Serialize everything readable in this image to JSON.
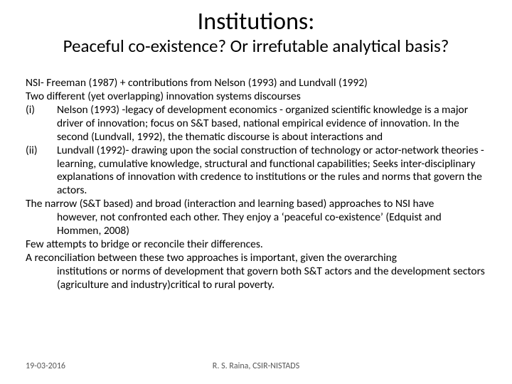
{
  "title": "Institutions:",
  "subtitle": "Peaceful co-existence? Or irrefutable analytical basis?",
  "body": {
    "line1": " NSI-  Freeman (1987) +  contributions from Nelson (1993) and Lundvall (1992)",
    "line2": "Two different (yet overlapping) innovation systems discourses",
    "item1_marker": "(i)",
    "item1_text": "Nelson (1993) -legacy of development economics - organized scientific knowledge is a major driver of innovation; focus on S&T based, national empirical evidence of innovation.  In the second (Lundvall, 1992), the thematic discourse is about interactions and",
    "item2_marker": "(ii)",
    "item2_text": "Lundvall (1992)- drawing upon the social construction of technology or actor-network theories - learning, cumulative knowledge, structural and functional capabilities; Seeks inter-disciplinary explanations of innovation with credence to institutions or the rules and norms that govern the actors.",
    "line3a": "The narrow (S&T based) and broad (interaction and learning based) approaches to NSI have",
    "line3b": "however, not confronted each other. They enjoy a ‘peaceful co-existence’ (Edquist and Hommen, 2008)",
    "line4": "Few attempts to bridge or reconcile their differences.",
    "line5a": "A reconciliation between these two approaches is important, given the overarching",
    "line5b": "institutions or norms of development that govern both S&T actors and the development sectors (agriculture and industry)critical to rural poverty."
  },
  "footer": {
    "date": "19-03-2016",
    "author": "R. S. Raina, CSIR-NISTADS"
  },
  "style": {
    "background": "#ffffff",
    "text_color": "#000000",
    "footer_color": "#555555",
    "title_fontsize": 34,
    "subtitle_fontsize": 25,
    "body_fontsize": 15.5,
    "footer_fontsize": 12,
    "font_family": "Calibri"
  }
}
